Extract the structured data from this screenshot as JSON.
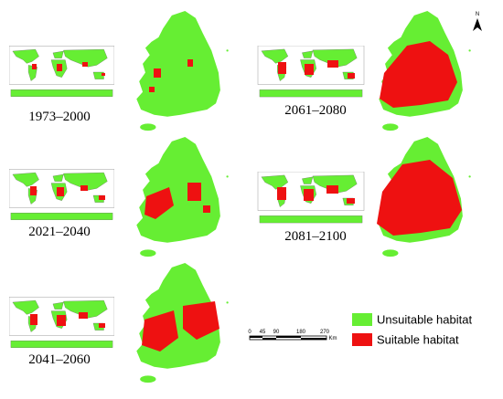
{
  "north_label": "N",
  "panels": [
    {
      "label": "1973–2000"
    },
    {
      "label": "2021–2040"
    },
    {
      "label": "2041–2060"
    },
    {
      "label": "2061–2080"
    },
    {
      "label": "2081–2100"
    }
  ],
  "scale_bar": {
    "labels": [
      "0",
      "45",
      "90",
      "180",
      "270"
    ],
    "unit": "Km"
  },
  "legend": [
    {
      "label": "Unsuitable habitat",
      "color": "#66ee33"
    },
    {
      "label": "Suitable habitat",
      "color": "#ee1111"
    }
  ]
}
